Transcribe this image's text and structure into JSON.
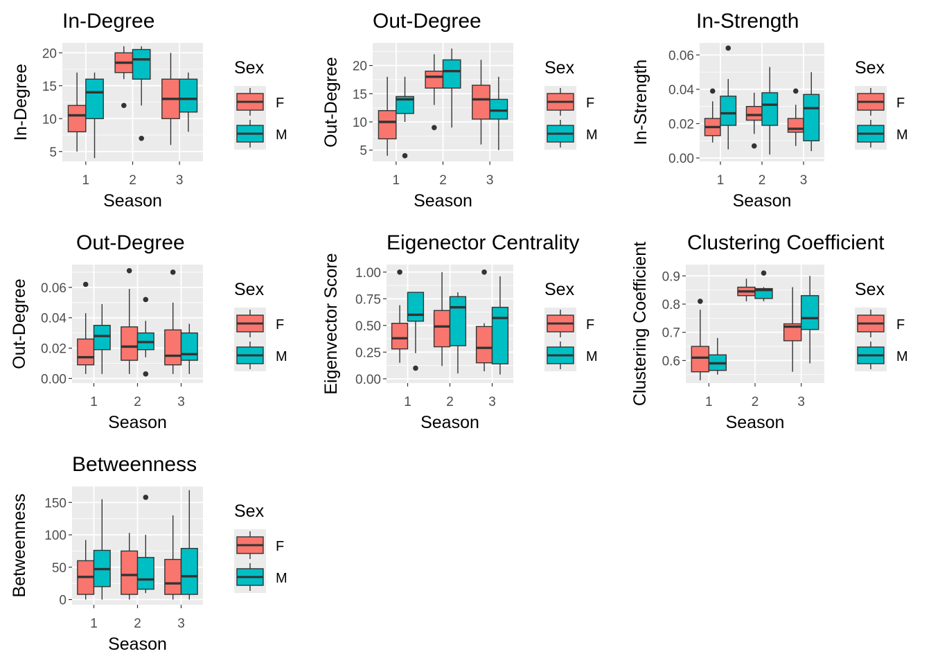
{
  "colors": {
    "F": "#F8766D",
    "M": "#00BFC4",
    "panel": "#EBEBEB",
    "grid": "#FFFFFF",
    "box_line": "#333333"
  },
  "legend": {
    "title": "Sex",
    "entries": [
      {
        "key": "F",
        "label": "F"
      },
      {
        "key": "M",
        "label": "M"
      }
    ]
  },
  "chart_data": [
    {
      "type": "boxplot",
      "title": "In-Degree",
      "xlabel": "Season",
      "ylabel": "In-Degree",
      "categories": [
        "1",
        "2",
        "3"
      ],
      "ylim": [
        3.5,
        21.5
      ],
      "yticks": [
        5,
        10,
        15,
        20
      ],
      "yticklabels": [
        "5",
        "10",
        "15",
        "20"
      ],
      "series": [
        {
          "name": "F",
          "boxes": [
            {
              "min": 5,
              "q1": 8,
              "median": 10.5,
              "q3": 12,
              "max": 17,
              "outliers": []
            },
            {
              "min": 16,
              "q1": 17,
              "median": 18.5,
              "q3": 20,
              "max": 21,
              "outliers": [
                12
              ]
            },
            {
              "min": 6,
              "q1": 10,
              "median": 13,
              "q3": 16,
              "max": 20,
              "outliers": []
            }
          ]
        },
        {
          "name": "M",
          "boxes": [
            {
              "min": 4,
              "q1": 10,
              "median": 14,
              "q3": 16,
              "max": 17,
              "outliers": []
            },
            {
              "min": 12,
              "q1": 16,
              "median": 19,
              "q3": 20.5,
              "max": 21,
              "outliers": [
                7
              ]
            },
            {
              "min": 8,
              "q1": 11,
              "median": 13,
              "q3": 16,
              "max": 17,
              "outliers": []
            }
          ]
        }
      ]
    },
    {
      "type": "boxplot",
      "title": "Out-Degree",
      "xlabel": "Season",
      "ylabel": "Out-Degree",
      "categories": [
        "1",
        "2",
        "3"
      ],
      "ylim": [
        3,
        24
      ],
      "yticks": [
        5,
        10,
        15,
        20
      ],
      "yticklabels": [
        "5",
        "10",
        "15",
        "20"
      ],
      "series": [
        {
          "name": "F",
          "boxes": [
            {
              "min": 4,
              "q1": 7,
              "median": 10,
              "q3": 12,
              "max": 18,
              "outliers": []
            },
            {
              "min": 13,
              "q1": 16,
              "median": 18,
              "q3": 19,
              "max": 22,
              "outliers": [
                9
              ]
            },
            {
              "min": 6,
              "q1": 10.5,
              "median": 14,
              "q3": 16.5,
              "max": 21,
              "outliers": []
            }
          ]
        },
        {
          "name": "M",
          "boxes": [
            {
              "min": 10,
              "q1": 11.5,
              "median": 14,
              "q3": 14.5,
              "max": 18,
              "outliers": [
                4
              ]
            },
            {
              "min": 9,
              "q1": 16,
              "median": 19,
              "q3": 21,
              "max": 23,
              "outliers": []
            },
            {
              "min": 5,
              "q1": 10.5,
              "median": 12,
              "q3": 14,
              "max": 18,
              "outliers": []
            }
          ]
        }
      ]
    },
    {
      "type": "boxplot",
      "title": "In-Strength",
      "xlabel": "Season",
      "ylabel": "In-Strength",
      "categories": [
        "1",
        "2",
        "3"
      ],
      "ylim": [
        -0.002,
        0.067
      ],
      "yticks": [
        0,
        0.02,
        0.04,
        0.06
      ],
      "yticklabels": [
        "0.00",
        "0.02",
        "0.04",
        "0.06"
      ],
      "series": [
        {
          "name": "F",
          "boxes": [
            {
              "min": 0.009,
              "q1": 0.013,
              "median": 0.018,
              "q3": 0.023,
              "max": 0.033,
              "outliers": [
                0.039
              ]
            },
            {
              "min": 0.014,
              "q1": 0.022,
              "median": 0.025,
              "q3": 0.03,
              "max": 0.038,
              "outliers": [
                0.007
              ]
            },
            {
              "min": 0.007,
              "q1": 0.015,
              "median": 0.017,
              "q3": 0.023,
              "max": 0.031,
              "outliers": [
                0.039
              ]
            }
          ]
        },
        {
          "name": "M",
          "boxes": [
            {
              "min": 0.005,
              "q1": 0.019,
              "median": 0.026,
              "q3": 0.036,
              "max": 0.046,
              "outliers": [
                0.064
              ]
            },
            {
              "min": 0.002,
              "q1": 0.019,
              "median": 0.031,
              "q3": 0.038,
              "max": 0.053,
              "outliers": []
            },
            {
              "min": 0.004,
              "q1": 0.01,
              "median": 0.029,
              "q3": 0.037,
              "max": 0.05,
              "outliers": []
            }
          ]
        }
      ]
    },
    {
      "type": "boxplot",
      "title": "Out-Degree",
      "xlabel": "Season",
      "ylabel": "Out-Degree",
      "categories": [
        "1",
        "2",
        "3"
      ],
      "ylim": [
        -0.003,
        0.075
      ],
      "yticks": [
        0,
        0.02,
        0.04,
        0.06
      ],
      "yticklabels": [
        "0.00",
        "0.02",
        "0.04",
        "0.06"
      ],
      "series": [
        {
          "name": "F",
          "boxes": [
            {
              "min": 0.003,
              "q1": 0.009,
              "median": 0.014,
              "q3": 0.026,
              "max": 0.043,
              "outliers": [
                0.062
              ]
            },
            {
              "min": 0.003,
              "q1": 0.012,
              "median": 0.021,
              "q3": 0.034,
              "max": 0.059,
              "outliers": [
                0.071
              ]
            },
            {
              "min": 0.003,
              "q1": 0.009,
              "median": 0.015,
              "q3": 0.032,
              "max": 0.05,
              "outliers": [
                0.07
              ]
            }
          ]
        },
        {
          "name": "M",
          "boxes": [
            {
              "min": 0.003,
              "q1": 0.019,
              "median": 0.028,
              "q3": 0.035,
              "max": 0.049,
              "outliers": []
            },
            {
              "min": 0.014,
              "q1": 0.019,
              "median": 0.024,
              "q3": 0.03,
              "max": 0.038,
              "outliers": [
                0.052,
                0.003
              ]
            },
            {
              "min": 0.003,
              "q1": 0.012,
              "median": 0.016,
              "q3": 0.03,
              "max": 0.036,
              "outliers": []
            }
          ]
        }
      ]
    },
    {
      "type": "boxplot",
      "title": "Eigenector Centrality",
      "xlabel": "Season",
      "ylabel": "Eigenvector Score",
      "categories": [
        "1",
        "2",
        "3"
      ],
      "ylim": [
        -0.04,
        1.07
      ],
      "yticks": [
        0,
        0.25,
        0.5,
        0.75,
        1.0
      ],
      "yticklabels": [
        "0.00",
        "0.25",
        "0.50",
        "0.75",
        "1.00"
      ],
      "series": [
        {
          "name": "F",
          "boxes": [
            {
              "min": 0.15,
              "q1": 0.28,
              "median": 0.38,
              "q3": 0.52,
              "max": 0.69,
              "outliers": [
                1.0
              ]
            },
            {
              "min": 0.12,
              "q1": 0.3,
              "median": 0.49,
              "q3": 0.64,
              "max": 1.0,
              "outliers": []
            },
            {
              "min": 0.07,
              "q1": 0.15,
              "median": 0.29,
              "q3": 0.49,
              "max": 0.52,
              "outliers": [
                1.0
              ]
            }
          ]
        },
        {
          "name": "M",
          "boxes": [
            {
              "min": 0.24,
              "q1": 0.54,
              "median": 0.6,
              "q3": 0.81,
              "max": 0.81,
              "outliers": [
                0.1
              ]
            },
            {
              "min": 0.05,
              "q1": 0.31,
              "median": 0.67,
              "q3": 0.77,
              "max": 0.81,
              "outliers": []
            },
            {
              "min": 0.04,
              "q1": 0.14,
              "median": 0.57,
              "q3": 0.67,
              "max": 0.96,
              "outliers": []
            }
          ]
        }
      ]
    },
    {
      "type": "boxplot",
      "title": "Clustering Coefficient",
      "xlabel": "Season",
      "ylabel": "Clustering Coefficient",
      "categories": [
        "1",
        "2",
        "3"
      ],
      "ylim": [
        0.52,
        0.94
      ],
      "yticks": [
        0.6,
        0.7,
        0.8,
        0.9
      ],
      "yticklabels": [
        "0.6",
        "0.7",
        "0.8",
        "0.9"
      ],
      "series": [
        {
          "name": "F",
          "boxes": [
            {
              "min": 0.53,
              "q1": 0.56,
              "median": 0.61,
              "q3": 0.65,
              "max": 0.78,
              "outliers": [
                0.81
              ]
            },
            {
              "min": 0.81,
              "q1": 0.83,
              "median": 0.845,
              "q3": 0.86,
              "max": 0.89,
              "outliers": []
            },
            {
              "min": 0.56,
              "q1": 0.67,
              "median": 0.72,
              "q3": 0.73,
              "max": 0.86,
              "outliers": []
            }
          ]
        },
        {
          "name": "M",
          "boxes": [
            {
              "min": 0.55,
              "q1": 0.565,
              "median": 0.59,
              "q3": 0.62,
              "max": 0.68,
              "outliers": []
            },
            {
              "min": 0.81,
              "q1": 0.82,
              "median": 0.85,
              "q3": 0.855,
              "max": 0.86,
              "outliers": [
                0.91
              ]
            },
            {
              "min": 0.59,
              "q1": 0.71,
              "median": 0.75,
              "q3": 0.83,
              "max": 0.9,
              "outliers": []
            }
          ]
        }
      ]
    },
    {
      "type": "boxplot",
      "title": "Betweenness",
      "xlabel": "Season",
      "ylabel": "Betweenness",
      "categories": [
        "1",
        "2",
        "3"
      ],
      "ylim": [
        -8,
        175
      ],
      "yticks": [
        0,
        50,
        100,
        150
      ],
      "yticklabels": [
        "0",
        "50",
        "100",
        "150"
      ],
      "series": [
        {
          "name": "F",
          "boxes": [
            {
              "min": 0,
              "q1": 8,
              "median": 35,
              "q3": 60,
              "max": 92,
              "outliers": []
            },
            {
              "min": 0,
              "q1": 8,
              "median": 38,
              "q3": 75,
              "max": 103,
              "outliers": []
            },
            {
              "min": 0,
              "q1": 8,
              "median": 25,
              "q3": 62,
              "max": 130,
              "outliers": []
            }
          ]
        },
        {
          "name": "M",
          "boxes": [
            {
              "min": 0,
              "q1": 20,
              "median": 47,
              "q3": 76,
              "max": 155,
              "outliers": []
            },
            {
              "min": 10,
              "q1": 16,
              "median": 31,
              "q3": 65,
              "max": 100,
              "outliers": [
                158
              ]
            },
            {
              "min": 0,
              "q1": 8,
              "median": 36,
              "q3": 79,
              "max": 169,
              "outliers": []
            }
          ]
        }
      ]
    }
  ]
}
